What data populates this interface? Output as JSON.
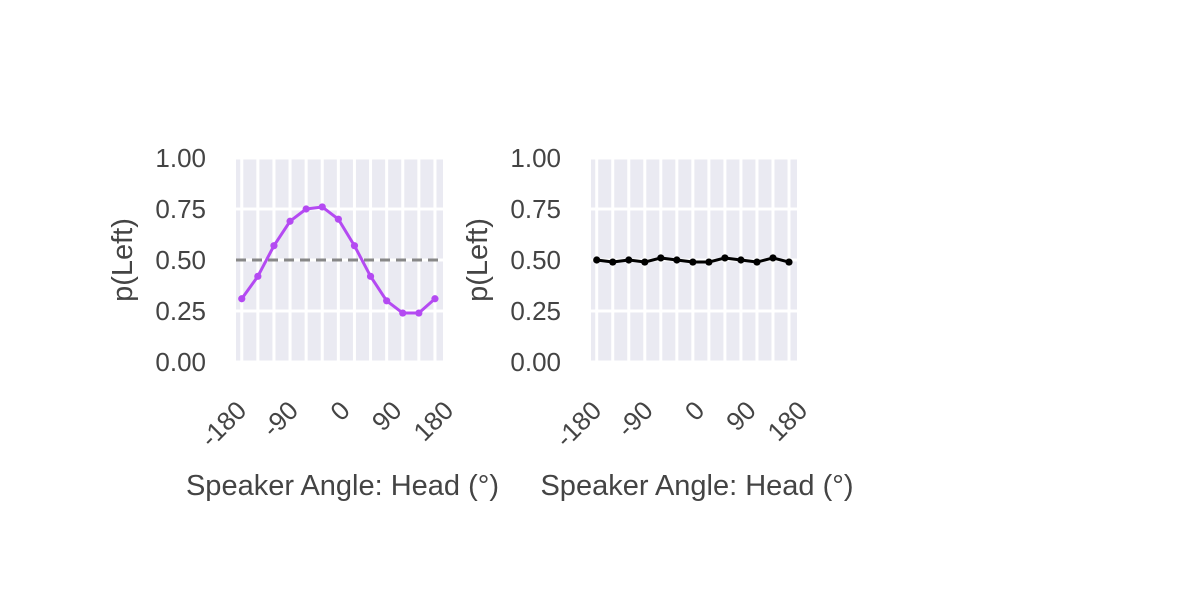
{
  "chart_data": [
    {
      "type": "line",
      "xlabel": "Speaker Angle: Head (°)",
      "ylabel": "p(Left)",
      "xlim": [
        -180,
        180
      ],
      "ylim": [
        0,
        1
      ],
      "xticks": [
        -180,
        -90,
        0,
        90,
        180
      ],
      "xtick_labels": [
        "-180",
        "-90",
        "0",
        "90",
        "180"
      ],
      "yticks": [
        0,
        0.25,
        0.5,
        0.75,
        1
      ],
      "ytick_labels": [
        "0.00",
        "0.25",
        "0.50",
        "0.75",
        "1.00"
      ],
      "grid": true,
      "reference_line": {
        "y": 0.5,
        "style": "dashed",
        "color": "#888888"
      },
      "series": [
        {
          "color": "#b44af2",
          "x": [
            -170,
            -142,
            -114,
            -86,
            -58,
            -30,
            -2,
            26,
            54,
            82,
            110,
            138,
            166
          ],
          "y": [
            0.31,
            0.42,
            0.57,
            0.69,
            0.75,
            0.76,
            0.7,
            0.57,
            0.42,
            0.3,
            0.24,
            0.24,
            0.31
          ]
        }
      ]
    },
    {
      "type": "line",
      "xlabel": "Speaker Angle: Head (°)",
      "ylabel": "p(Left)",
      "xlim": [
        -180,
        180
      ],
      "ylim": [
        0,
        1
      ],
      "xticks": [
        -180,
        -90,
        0,
        90,
        180
      ],
      "xtick_labels": [
        "-180",
        "-90",
        "0",
        "90",
        "180"
      ],
      "yticks": [
        0,
        0.25,
        0.5,
        0.75,
        1
      ],
      "ytick_labels": [
        "0.00",
        "0.25",
        "0.50",
        "0.75",
        "1.00"
      ],
      "grid": true,
      "series": [
        {
          "color": "#000000",
          "x": [
            -170,
            -142,
            -114,
            -86,
            -58,
            -30,
            -2,
            26,
            54,
            82,
            110,
            138,
            166
          ],
          "y": [
            0.5,
            0.49,
            0.5,
            0.49,
            0.51,
            0.5,
            0.49,
            0.49,
            0.51,
            0.5,
            0.49,
            0.51,
            0.49
          ]
        }
      ]
    }
  ]
}
